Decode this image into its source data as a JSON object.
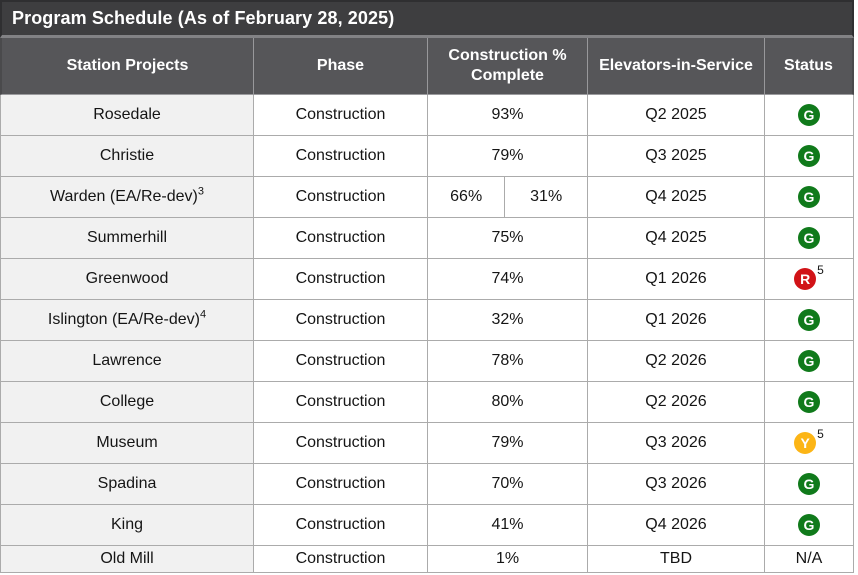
{
  "title": "Program Schedule (As of February 28, 2025)",
  "columns": [
    {
      "label": "Station Projects"
    },
    {
      "label": "Phase"
    },
    {
      "label": "Construction % Complete"
    },
    {
      "label": "Elevators-in-Service"
    },
    {
      "label": "Status"
    }
  ],
  "rows": [
    {
      "station": "Rosedale",
      "phase": "Construction",
      "complete": "93%",
      "elevators": "Q2 2025",
      "status": "G"
    },
    {
      "station": "Christie",
      "phase": "Construction",
      "complete": "79%",
      "elevators": "Q3 2025",
      "status": "G"
    },
    {
      "station": "Warden (EA/Re-dev)",
      "station_sup": "3",
      "phase": "Construction",
      "complete_split": [
        "66%",
        "31%"
      ],
      "elevators": "Q4 2025",
      "status": "G"
    },
    {
      "station": "Summerhill",
      "phase": "Construction",
      "complete": "75%",
      "elevators": "Q4 2025",
      "status": "G"
    },
    {
      "station": "Greenwood",
      "phase": "Construction",
      "complete": "74%",
      "elevators": "Q1 2026",
      "status": "R",
      "status_sup": "5"
    },
    {
      "station": "Islington (EA/Re-dev)",
      "station_sup": "4",
      "phase": "Construction",
      "complete": "32%",
      "elevators": "Q1 2026",
      "status": "G"
    },
    {
      "station": "Lawrence",
      "phase": "Construction",
      "complete": "78%",
      "elevators": "Q2 2026",
      "status": "G"
    },
    {
      "station": "College",
      "phase": "Construction",
      "complete": "80%",
      "elevators": "Q2 2026",
      "status": "G"
    },
    {
      "station": "Museum",
      "phase": "Construction",
      "complete": "79%",
      "elevators": "Q3 2026",
      "status": "Y",
      "status_sup": "5"
    },
    {
      "station": "Spadina",
      "phase": "Construction",
      "complete": "70%",
      "elevators": "Q3 2026",
      "status": "G"
    },
    {
      "station": "King",
      "phase": "Construction",
      "complete": "41%",
      "elevators": "Q4 2026",
      "status": "G"
    },
    {
      "station": "Old Mill",
      "phase": "Construction",
      "complete": "1%",
      "elevators": "TBD",
      "status": "N/A",
      "last": true
    }
  ],
  "status_styles": {
    "G": {
      "bg": "#107a1b",
      "label": "G"
    },
    "R": {
      "bg": "#d11317",
      "label": "R"
    },
    "Y": {
      "bg": "#fcb516",
      "label": "Y"
    }
  },
  "colors": {
    "title_bar_bg": "#3e3e40",
    "header_bg": "#565659",
    "station_col_bg": "#f1f1f1",
    "row_bg": "#ffffff",
    "grid_border": "#ababab",
    "header_text": "#ffffff",
    "body_text": "#151515"
  }
}
